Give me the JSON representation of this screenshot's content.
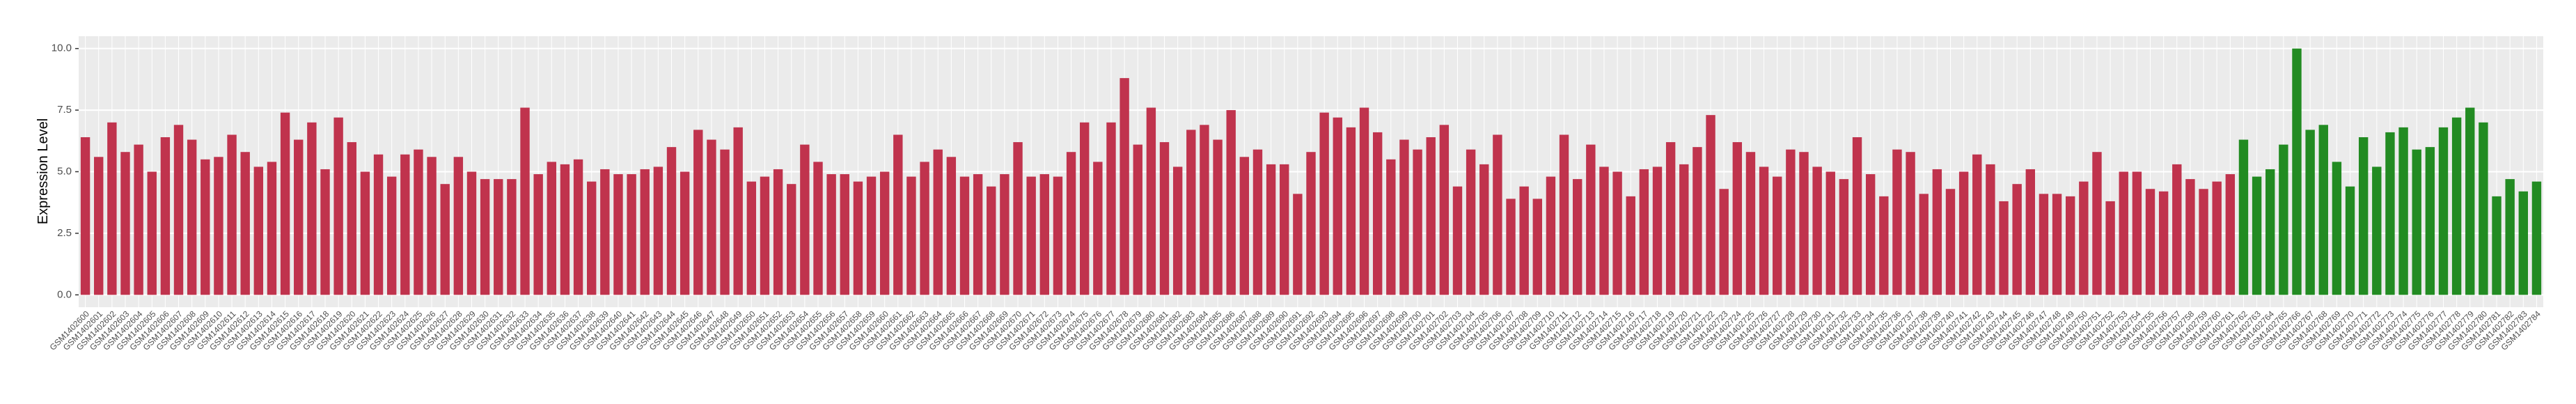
{
  "chart_data": {
    "type": "bar",
    "y_label": "Expression Level",
    "ylim": [
      -0.5,
      10.5
    ],
    "yticks": [
      {
        "value": 0,
        "label": "0.0"
      },
      {
        "value": 2.5,
        "label": "2.5"
      },
      {
        "value": 5,
        "label": "5.0"
      },
      {
        "value": 7.5,
        "label": "7.5"
      },
      {
        "value": 10,
        "label": "10.0"
      }
    ],
    "grid": true,
    "categories": [
      "GSM1402600",
      "GSM1402601",
      "GSM1402602",
      "GSM1402603",
      "GSM1402604",
      "GSM1402605",
      "GSM1402606",
      "GSM1402607",
      "GSM1402608",
      "GSM1402609",
      "GSM1402610",
      "GSM1402611",
      "GSM1402612",
      "GSM1402613",
      "GSM1402614",
      "GSM1402615",
      "GSM1402616",
      "GSM1402617",
      "GSM1402618",
      "GSM1402619",
      "GSM1402620",
      "GSM1402621",
      "GSM1402622",
      "GSM1402623",
      "GSM1402624",
      "GSM1402625",
      "GSM1402626",
      "GSM1402627",
      "GSM1402628",
      "GSM1402629",
      "GSM1402630",
      "GSM1402631",
      "GSM1402632",
      "GSM1402633",
      "GSM1402634",
      "GSM1402635",
      "GSM1402636",
      "GSM1402637",
      "GSM1402638",
      "GSM1402639",
      "GSM1402640",
      "GSM1402641",
      "GSM1402642",
      "GSM1402643",
      "GSM1402644",
      "GSM1402645",
      "GSM1402646",
      "GSM1402647",
      "GSM1402648",
      "GSM1402649",
      "GSM1402650",
      "GSM1402651",
      "GSM1402652",
      "GSM1402653",
      "GSM1402654",
      "GSM1402655",
      "GSM1402656",
      "GSM1402657",
      "GSM1402658",
      "GSM1402659",
      "GSM1402660",
      "GSM1402661",
      "GSM1402662",
      "GSM1402663",
      "GSM1402664",
      "GSM1402665",
      "GSM1402666",
      "GSM1402667",
      "GSM1402668",
      "GSM1402669",
      "GSM1402670",
      "GSM1402671",
      "GSM1402672",
      "GSM1402673",
      "GSM1402674",
      "GSM1402675",
      "GSM1402676",
      "GSM1402677",
      "GSM1402678",
      "GSM1402679",
      "GSM1402680",
      "GSM1402681",
      "GSM1402682",
      "GSM1402683",
      "GSM1402684",
      "GSM1402685",
      "GSM1402686",
      "GSM1402687",
      "GSM1402688",
      "GSM1402689",
      "GSM1402690",
      "GSM1402691",
      "GSM1402692",
      "GSM1402693",
      "GSM1402694",
      "GSM1402695",
      "GSM1402696",
      "GSM1402697",
      "GSM1402698",
      "GSM1402699",
      "GSM1402700",
      "GSM1402701",
      "GSM1402702",
      "GSM1402703",
      "GSM1402704",
      "GSM1402705",
      "GSM1402706",
      "GSM1402707",
      "GSM1402708",
      "GSM1402709",
      "GSM1402710",
      "GSM1402711",
      "GSM1402712",
      "GSM1402713",
      "GSM1402714",
      "GSM1402715",
      "GSM1402716",
      "GSM1402717",
      "GSM1402718",
      "GSM1402719",
      "GSM1402720",
      "GSM1402721",
      "GSM1402722",
      "GSM1402723",
      "GSM1402724",
      "GSM1402725",
      "GSM1402726",
      "GSM1402727",
      "GSM1402728",
      "GSM1402729",
      "GSM1402730",
      "GSM1402731",
      "GSM1402732",
      "GSM1402733",
      "GSM1402734",
      "GSM1402735",
      "GSM1402736",
      "GSM1402737",
      "GSM1402738",
      "GSM1402739",
      "GSM1402740",
      "GSM1402741",
      "GSM1402742",
      "GSM1402743",
      "GSM1402744",
      "GSM1402745",
      "GSM1402746",
      "GSM1402747",
      "GSM1402748",
      "GSM1402749",
      "GSM1402750",
      "GSM1402751",
      "GSM1402752",
      "GSM1402753",
      "GSM1402754",
      "GSM1402755",
      "GSM1402756",
      "GSM1402757",
      "GSM1402758",
      "GSM1402759",
      "GSM1402760",
      "GSM1402761",
      "GSM1402762",
      "GSM1402763",
      "GSM1402764",
      "GSM1402765",
      "GSM1402766",
      "GSM1402767",
      "GSM1402768",
      "GSM1402769",
      "GSM1402770",
      "GSM1402771",
      "GSM1402772",
      "GSM1402773",
      "GSM1402774",
      "GSM1402775",
      "GSM1402776",
      "GSM1402777",
      "GSM1402778",
      "GSM1402779",
      "GSM1402780",
      "GSM1402781",
      "GSM1402782",
      "GSM1402783",
      "GSM1402784"
    ],
    "values": [
      6.4,
      5.6,
      7.0,
      5.8,
      6.1,
      5.0,
      6.4,
      6.9,
      6.3,
      5.5,
      5.6,
      6.5,
      5.8,
      5.2,
      5.4,
      7.4,
      6.3,
      7.0,
      5.1,
      7.2,
      6.2,
      5.0,
      5.7,
      4.8,
      5.7,
      5.9,
      5.6,
      4.5,
      5.6,
      5.0,
      4.7,
      4.7,
      4.7,
      7.6,
      4.9,
      5.4,
      5.3,
      5.5,
      4.6,
      5.1,
      4.9,
      4.9,
      5.1,
      5.2,
      6.0,
      5.0,
      6.7,
      6.3,
      5.9,
      6.8,
      4.6,
      4.8,
      5.1,
      4.5,
      6.1,
      5.4,
      4.9,
      4.9,
      4.6,
      4.8,
      5.0,
      6.5,
      4.8,
      5.4,
      5.9,
      5.6,
      4.8,
      4.9,
      4.4,
      4.9,
      6.2,
      4.8,
      4.9,
      4.8,
      5.8,
      7.0,
      5.4,
      7.0,
      8.8,
      6.1,
      7.6,
      6.2,
      5.2,
      6.7,
      6.9,
      6.3,
      7.5,
      5.6,
      5.9,
      5.3,
      5.3,
      4.1,
      5.8,
      7.4,
      7.2,
      6.8,
      7.6,
      6.6,
      5.5,
      6.3,
      5.9,
      6.4,
      6.9,
      4.4,
      5.9,
      5.3,
      6.5,
      3.9,
      4.4,
      3.9,
      4.8,
      6.5,
      4.7,
      6.1,
      5.2,
      5.0,
      4.0,
      5.1,
      5.2,
      6.2,
      5.3,
      6.0,
      7.3,
      4.3,
      6.2,
      5.8,
      5.2,
      4.8,
      5.9,
      5.8,
      5.2,
      5.0,
      4.7,
      6.4,
      4.9,
      4.0,
      5.9,
      5.8,
      4.1,
      5.1,
      4.3,
      5.0,
      5.7,
      5.3,
      3.8,
      4.5,
      5.1,
      4.1,
      4.1,
      4.0,
      4.6,
      5.8,
      3.8,
      5.0,
      5.0,
      4.3,
      4.2,
      5.3,
      4.7,
      4.3,
      4.6,
      4.9,
      6.3,
      4.8,
      5.1,
      6.1,
      10.0,
      6.7,
      6.9,
      5.4,
      4.4,
      6.4,
      5.2,
      6.6,
      6.8,
      5.9,
      6.0,
      6.8,
      7.2,
      7.6,
      7.0,
      4.0,
      4.7,
      4.2,
      4.6
    ],
    "colors": [
      "#c0334d",
      "#c0334d",
      "#c0334d",
      "#c0334d",
      "#c0334d",
      "#c0334d",
      "#c0334d",
      "#c0334d",
      "#c0334d",
      "#c0334d",
      "#c0334d",
      "#c0334d",
      "#c0334d",
      "#c0334d",
      "#c0334d",
      "#c0334d",
      "#c0334d",
      "#c0334d",
      "#c0334d",
      "#c0334d",
      "#c0334d",
      "#c0334d",
      "#c0334d",
      "#c0334d",
      "#c0334d",
      "#c0334d",
      "#c0334d",
      "#c0334d",
      "#c0334d",
      "#c0334d",
      "#c0334d",
      "#c0334d",
      "#c0334d",
      "#c0334d",
      "#c0334d",
      "#c0334d",
      "#c0334d",
      "#c0334d",
      "#c0334d",
      "#c0334d",
      "#c0334d",
      "#c0334d",
      "#c0334d",
      "#c0334d",
      "#c0334d",
      "#c0334d",
      "#c0334d",
      "#c0334d",
      "#c0334d",
      "#c0334d",
      "#c0334d",
      "#c0334d",
      "#c0334d",
      "#c0334d",
      "#c0334d",
      "#c0334d",
      "#c0334d",
      "#c0334d",
      "#c0334d",
      "#c0334d",
      "#c0334d",
      "#c0334d",
      "#c0334d",
      "#c0334d",
      "#c0334d",
      "#c0334d",
      "#c0334d",
      "#c0334d",
      "#c0334d",
      "#c0334d",
      "#c0334d",
      "#c0334d",
      "#c0334d",
      "#c0334d",
      "#c0334d",
      "#c0334d",
      "#c0334d",
      "#c0334d",
      "#c0334d",
      "#c0334d",
      "#c0334d",
      "#c0334d",
      "#c0334d",
      "#c0334d",
      "#c0334d",
      "#c0334d",
      "#c0334d",
      "#c0334d",
      "#c0334d",
      "#c0334d",
      "#c0334d",
      "#c0334d",
      "#c0334d",
      "#c0334d",
      "#c0334d",
      "#c0334d",
      "#c0334d",
      "#c0334d",
      "#c0334d",
      "#c0334d",
      "#c0334d",
      "#c0334d",
      "#c0334d",
      "#c0334d",
      "#c0334d",
      "#c0334d",
      "#c0334d",
      "#c0334d",
      "#c0334d",
      "#c0334d",
      "#c0334d",
      "#c0334d",
      "#c0334d",
      "#c0334d",
      "#c0334d",
      "#c0334d",
      "#c0334d",
      "#c0334d",
      "#c0334d",
      "#c0334d",
      "#c0334d",
      "#c0334d",
      "#c0334d",
      "#c0334d",
      "#c0334d",
      "#c0334d",
      "#c0334d",
      "#c0334d",
      "#c0334d",
      "#c0334d",
      "#c0334d",
      "#c0334d",
      "#c0334d",
      "#c0334d",
      "#c0334d",
      "#c0334d",
      "#c0334d",
      "#c0334d",
      "#c0334d",
      "#c0334d",
      "#c0334d",
      "#c0334d",
      "#c0334d",
      "#c0334d",
      "#c0334d",
      "#c0334d",
      "#c0334d",
      "#c0334d",
      "#c0334d",
      "#c0334d",
      "#c0334d",
      "#c0334d",
      "#c0334d",
      "#c0334d",
      "#c0334d",
      "#c0334d",
      "#c0334d",
      "#c0334d",
      "#c0334d",
      "#c0334d",
      "#c0334d",
      "#c0334d",
      "#228b22",
      "#228b22",
      "#228b22",
      "#228b22",
      "#228b22",
      "#228b22",
      "#228b22",
      "#228b22",
      "#228b22",
      "#228b22",
      "#228b22",
      "#228b22",
      "#228b22",
      "#228b22",
      "#228b22",
      "#228b22",
      "#228b22",
      "#228b22",
      "#228b22",
      "#228b22",
      "#228b22",
      "#228b22",
      "#228b22"
    ]
  }
}
